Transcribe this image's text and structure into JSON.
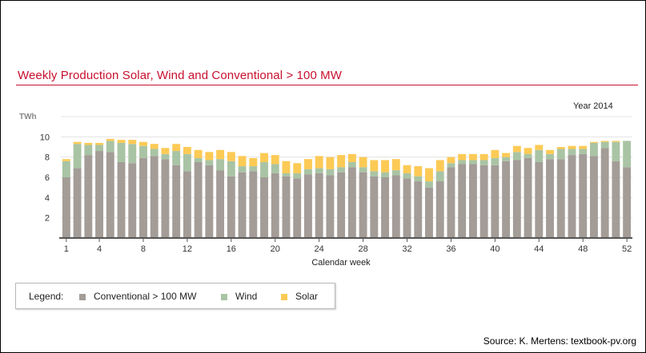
{
  "title": "Weekly Production Solar, Wind and Conventional > 100 MW",
  "source": "Source: K. Mertens: textbook-pv.org",
  "colors": {
    "title": "#c8102e",
    "conventional": "#a39c97",
    "wind": "#a9c4a4",
    "solar": "#fcca55",
    "grid": "#e3e3e3",
    "axis": "#555555"
  },
  "legend": {
    "label": "Legend:",
    "items": [
      {
        "name": "Conventional > 100 MW",
        "color": "#a39c97"
      },
      {
        "name": "Wind",
        "color": "#a9c4a4"
      },
      {
        "name": "Solar",
        "color": "#fcca55"
      }
    ]
  },
  "chart_data": {
    "type": "bar",
    "stacked": true,
    "annotation": "Year 2014",
    "xlabel": "Calendar week",
    "ylabel": "TWh",
    "ylim": [
      0,
      12
    ],
    "yticks": [
      2,
      4,
      6,
      8,
      10
    ],
    "xticks": [
      1,
      4,
      8,
      12,
      16,
      20,
      24,
      28,
      32,
      36,
      40,
      44,
      48,
      52
    ],
    "grid": true,
    "legend_position": "bottom",
    "categories": [
      1,
      2,
      3,
      4,
      5,
      6,
      7,
      8,
      9,
      10,
      11,
      12,
      13,
      14,
      15,
      16,
      17,
      18,
      19,
      20,
      21,
      22,
      23,
      24,
      25,
      26,
      27,
      28,
      29,
      30,
      31,
      32,
      33,
      34,
      35,
      36,
      37,
      38,
      39,
      40,
      41,
      42,
      43,
      44,
      45,
      46,
      47,
      48,
      49,
      50,
      51,
      52
    ],
    "series": [
      {
        "name": "Conventional > 100 MW",
        "values": [
          6.0,
          6.9,
          8.2,
          8.6,
          8.5,
          7.5,
          7.4,
          7.9,
          8.1,
          7.8,
          7.2,
          6.6,
          7.5,
          7.2,
          6.7,
          6.1,
          6.5,
          6.6,
          6.0,
          6.4,
          6.1,
          5.9,
          6.3,
          6.4,
          6.2,
          6.5,
          7.0,
          6.5,
          6.1,
          6.0,
          6.2,
          5.9,
          5.6,
          5.0,
          5.6,
          7.0,
          7.3,
          7.3,
          7.2,
          7.2,
          7.6,
          7.7,
          7.9,
          7.5,
          7.8,
          7.8,
          8.2,
          8.3,
          8.1,
          8.9,
          7.6,
          7.0
        ]
      },
      {
        "name": "Wind",
        "values": [
          1.6,
          2.4,
          1.0,
          0.6,
          1.1,
          1.9,
          1.9,
          1.2,
          0.7,
          0.5,
          1.4,
          1.7,
          0.4,
          0.5,
          1.1,
          1.5,
          0.6,
          0.5,
          1.5,
          0.9,
          0.3,
          0.5,
          0.5,
          0.5,
          0.6,
          0.5,
          0.5,
          0.5,
          0.5,
          0.5,
          0.5,
          0.5,
          0.5,
          0.6,
          1.0,
          0.4,
          0.4,
          0.4,
          0.5,
          0.7,
          0.4,
          0.8,
          0.4,
          1.2,
          0.5,
          1.0,
          0.6,
          0.5,
          1.3,
          0.6,
          1.9,
          2.6
        ]
      },
      {
        "name": "Solar",
        "values": [
          0.2,
          0.2,
          0.2,
          0.2,
          0.2,
          0.3,
          0.4,
          0.4,
          0.5,
          0.6,
          0.7,
          0.7,
          0.8,
          0.8,
          0.9,
          0.9,
          1.0,
          0.8,
          0.9,
          0.9,
          1.2,
          1.0,
          1.0,
          1.2,
          1.2,
          1.2,
          0.8,
          1.0,
          1.1,
          1.2,
          1.1,
          0.8,
          1.0,
          1.3,
          1.1,
          0.6,
          0.6,
          0.6,
          0.6,
          0.8,
          0.4,
          0.6,
          0.6,
          0.5,
          0.4,
          0.2,
          0.3,
          0.3,
          0.1,
          0.1,
          0.1,
          0.0
        ]
      }
    ]
  }
}
